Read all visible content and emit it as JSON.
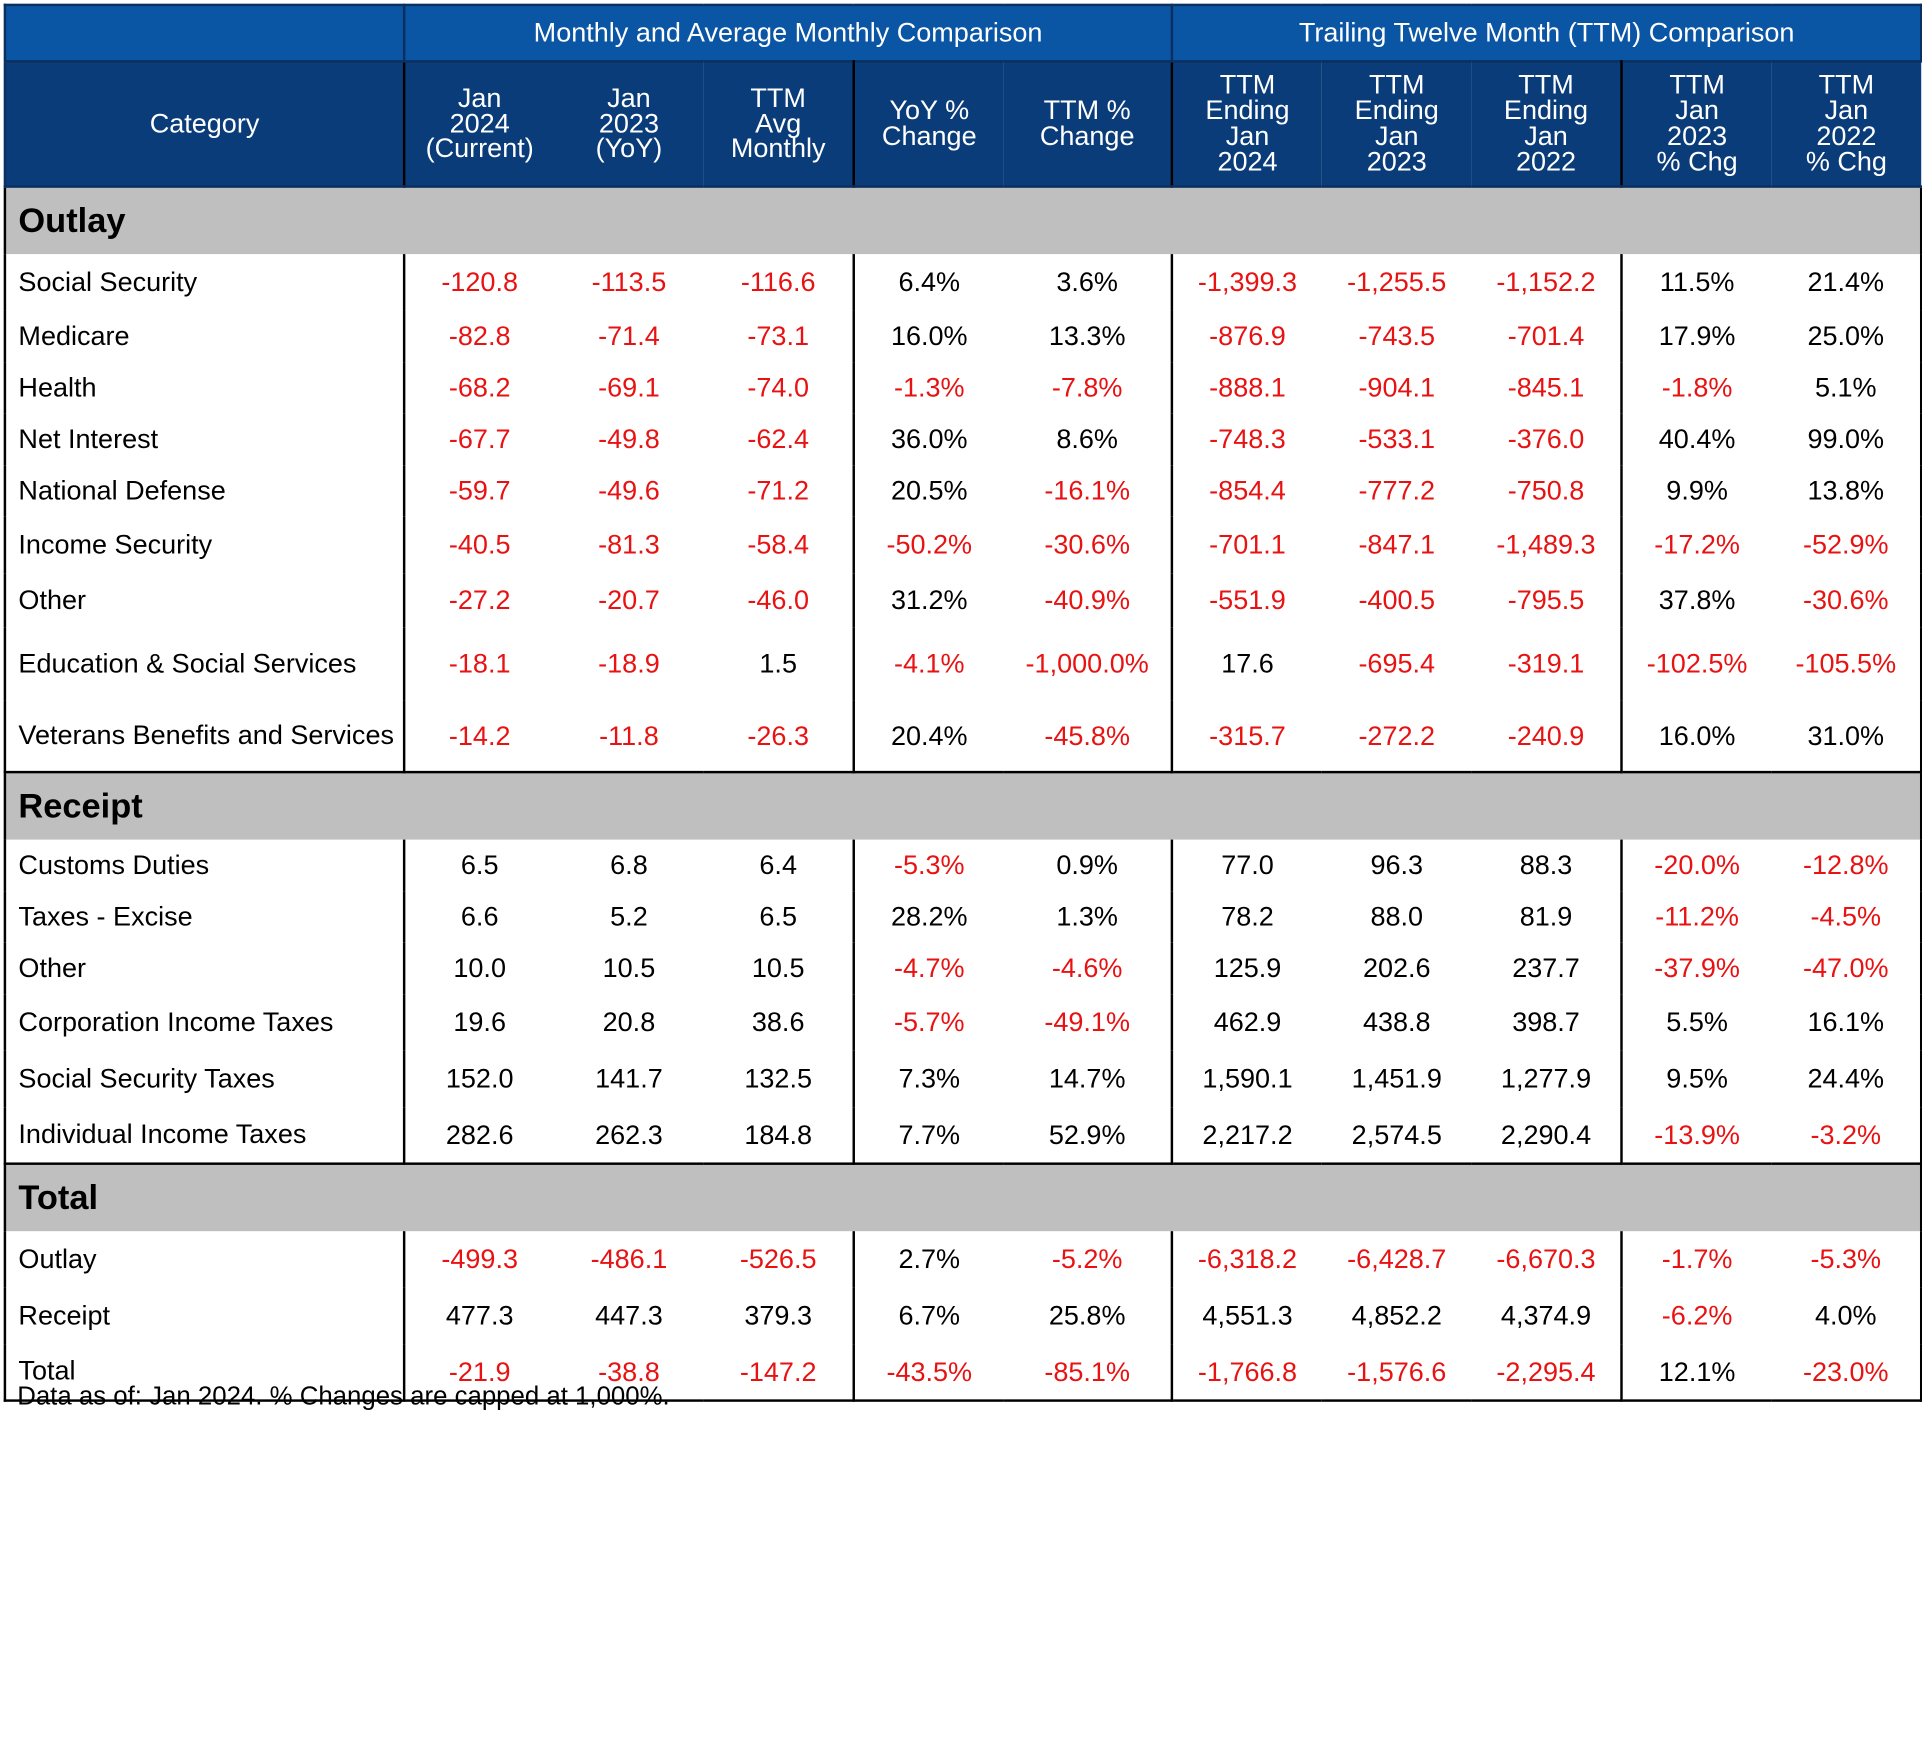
{
  "header": {
    "group_monthly": "Monthly and Average Monthly Comparison",
    "group_ttm": "Trailing Twelve Month (TTM) Comparison",
    "columns": [
      "Category",
      "Jan\n2024\n(Current)",
      "Jan\n2023\n(YoY)",
      "TTM\nAvg\nMonthly",
      "YoY %\nChange",
      "TTM %\nChange",
      "TTM\nEnding\nJan\n2024",
      "TTM\nEnding\nJan\n2023",
      "TTM\nEnding\nJan\n2022",
      "TTM\nJan\n2023\n% Chg",
      "TTM\nJan\n2022\n% Chg"
    ]
  },
  "sections": [
    {
      "title": "Outlay",
      "rows": [
        {
          "label": "Social Security",
          "values": [
            "-120.8",
            "-113.5",
            "-116.6",
            "6.4%",
            "3.6%",
            "-1,399.3",
            "-1,255.5",
            "-1,152.2",
            "11.5%",
            "21.4%"
          ]
        },
        {
          "label": "Medicare",
          "values": [
            "-82.8",
            "-71.4",
            "-73.1",
            "16.0%",
            "13.3%",
            "-876.9",
            "-743.5",
            "-701.4",
            "17.9%",
            "25.0%"
          ]
        },
        {
          "label": "Health",
          "values": [
            "-68.2",
            "-69.1",
            "-74.0",
            "-1.3%",
            "-7.8%",
            "-888.1",
            "-904.1",
            "-845.1",
            "-1.8%",
            "5.1%"
          ]
        },
        {
          "label": "Net Interest",
          "values": [
            "-67.7",
            "-49.8",
            "-62.4",
            "36.0%",
            "8.6%",
            "-748.3",
            "-533.1",
            "-376.0",
            "40.4%",
            "99.0%"
          ]
        },
        {
          "label": "National Defense",
          "values": [
            "-59.7",
            "-49.6",
            "-71.2",
            "20.5%",
            "-16.1%",
            "-854.4",
            "-777.2",
            "-750.8",
            "9.9%",
            "13.8%"
          ]
        },
        {
          "label": "Income Security",
          "values": [
            "-40.5",
            "-81.3",
            "-58.4",
            "-50.2%",
            "-30.6%",
            "-701.1",
            "-847.1",
            "-1,489.3",
            "-17.2%",
            "-52.9%"
          ]
        },
        {
          "label": "Other",
          "values": [
            "-27.2",
            "-20.7",
            "-46.0",
            "31.2%",
            "-40.9%",
            "-551.9",
            "-400.5",
            "-795.5",
            "37.8%",
            "-30.6%"
          ]
        },
        {
          "label": "Education & Social Services",
          "values": [
            "-18.1",
            "-18.9",
            "1.5",
            "-4.1%",
            "-1,000.0%",
            "17.6",
            "-695.4",
            "-319.1",
            "-102.5%",
            "-105.5%"
          ]
        },
        {
          "label": "Veterans Benefits and Services",
          "values": [
            "-14.2",
            "-11.8",
            "-26.3",
            "20.4%",
            "-45.8%",
            "-315.7",
            "-272.2",
            "-240.9",
            "16.0%",
            "31.0%"
          ]
        }
      ]
    },
    {
      "title": "Receipt",
      "rows": [
        {
          "label": "Customs Duties",
          "values": [
            "6.5",
            "6.8",
            "6.4",
            "-5.3%",
            "0.9%",
            "77.0",
            "96.3",
            "88.3",
            "-20.0%",
            "-12.8%"
          ]
        },
        {
          "label": "Taxes - Excise",
          "values": [
            "6.6",
            "5.2",
            "6.5",
            "28.2%",
            "1.3%",
            "78.2",
            "88.0",
            "81.9",
            "-11.2%",
            "-4.5%"
          ]
        },
        {
          "label": "Other",
          "values": [
            "10.0",
            "10.5",
            "10.5",
            "-4.7%",
            "-4.6%",
            "125.9",
            "202.6",
            "237.7",
            "-37.9%",
            "-47.0%"
          ]
        },
        {
          "label": "Corporation Income Taxes",
          "values": [
            "19.6",
            "20.8",
            "38.6",
            "-5.7%",
            "-49.1%",
            "462.9",
            "438.8",
            "398.7",
            "5.5%",
            "16.1%"
          ]
        },
        {
          "label": "Social Security Taxes",
          "values": [
            "152.0",
            "141.7",
            "132.5",
            "7.3%",
            "14.7%",
            "1,590.1",
            "1,451.9",
            "1,277.9",
            "9.5%",
            "24.4%"
          ]
        },
        {
          "label": "Individual Income Taxes",
          "values": [
            "282.6",
            "262.3",
            "184.8",
            "7.7%",
            "52.9%",
            "2,217.2",
            "2,574.5",
            "2,290.4",
            "-13.9%",
            "-3.2%"
          ]
        }
      ]
    },
    {
      "title": "Total",
      "rows": [
        {
          "label": "Outlay",
          "values": [
            "-499.3",
            "-486.1",
            "-526.5",
            "2.7%",
            "-5.2%",
            "-6,318.2",
            "-6,428.7",
            "-6,670.3",
            "-1.7%",
            "-5.3%"
          ]
        },
        {
          "label": "Receipt",
          "values": [
            "477.3",
            "447.3",
            "379.3",
            "6.7%",
            "25.8%",
            "4,551.3",
            "4,852.2",
            "4,374.9",
            "-6.2%",
            "4.0%"
          ]
        },
        {
          "label": "Total",
          "values": [
            "-21.9",
            "-38.8",
            "-147.2",
            "-43.5%",
            "-85.1%",
            "-1,766.8",
            "-1,576.6",
            "-2,295.4",
            "12.1%",
            "-23.0%"
          ]
        }
      ]
    }
  ],
  "footnote": "Data as of: Jan 2024. % Changes are capped at 1,000%.",
  "colors": {
    "header_group": "#0b55a5",
    "header_cols": "#0a3c7a",
    "section_bg": "#bfbfbf",
    "negative": "#e81212"
  }
}
